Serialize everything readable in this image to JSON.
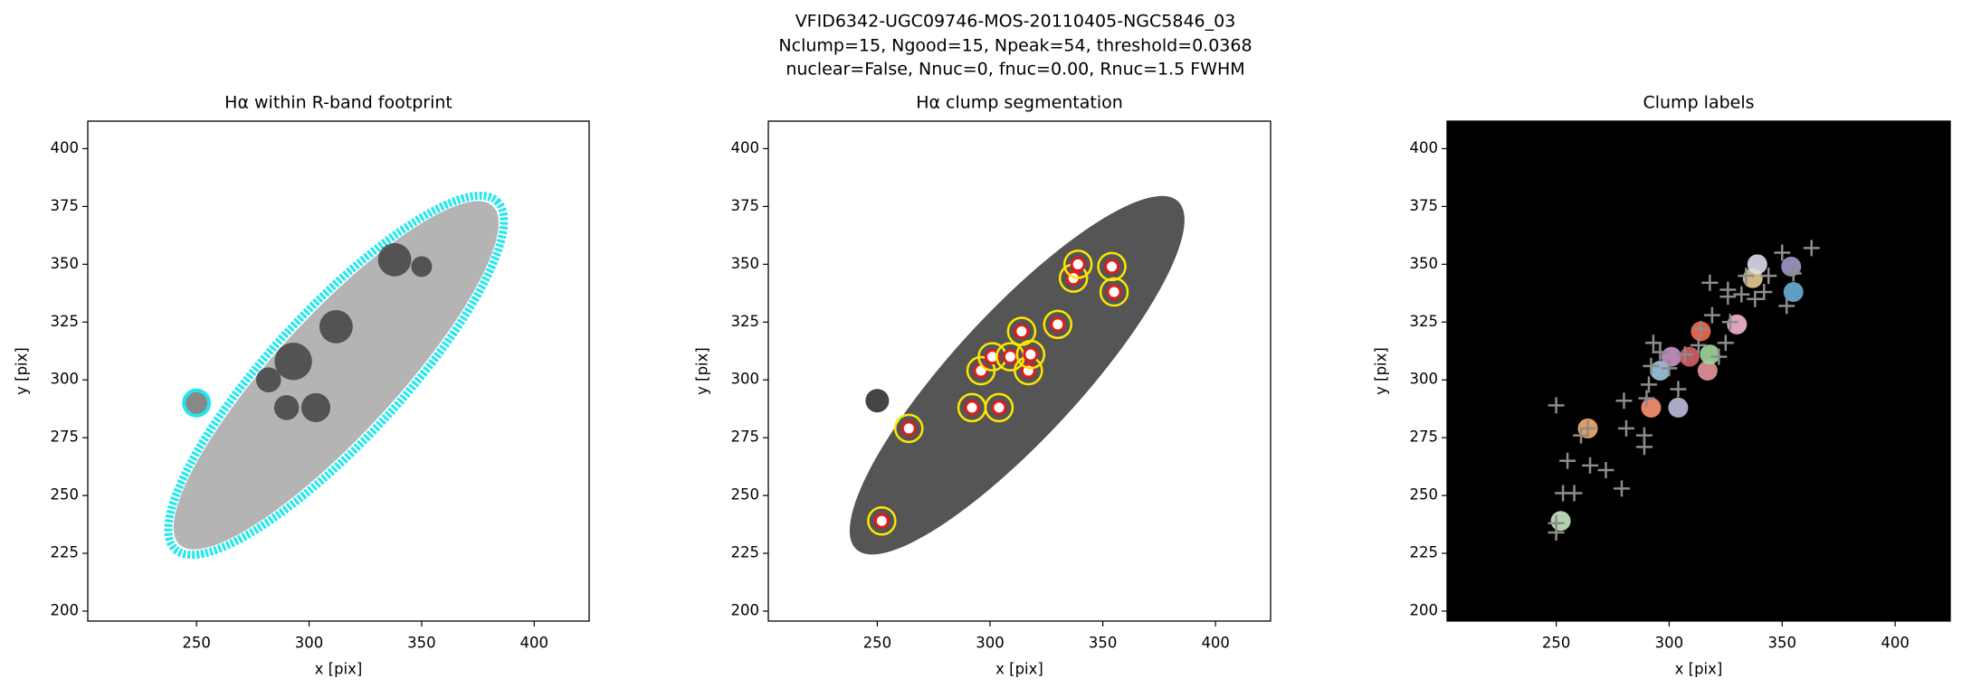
{
  "suptitle": [
    "VFID6342-UGC09746-MOS-20110405-NGC5846_03",
    "Nclump=15, Ngood=15, Npeak=54, threshold=0.0368",
    "nuclear=False, Nnuc=0, fnuc=0.00, Rnuc=1.5 FWHM"
  ],
  "chart_data": [
    {
      "type": "image",
      "title": "Hα within R-band footprint",
      "xlabel": "x [pix]",
      "ylabel": "y [pix]",
      "xlim": [
        201.7,
        424.4
      ],
      "ylim": [
        195.7,
        411.9
      ],
      "xticks": [
        250,
        300,
        350,
        400
      ],
      "yticks": [
        200,
        225,
        250,
        275,
        300,
        325,
        350,
        375,
        400
      ]
    },
    {
      "type": "scatter",
      "title": "Hα clump segmentation",
      "xlabel": "x [pix]",
      "ylabel": "y [pix]",
      "xlim": [
        201.7,
        424.4
      ],
      "ylim": [
        195.7,
        411.9
      ],
      "xticks": [
        250,
        300,
        350,
        400
      ],
      "yticks": [
        200,
        225,
        250,
        275,
        300,
        325,
        350,
        375,
        400
      ],
      "color": "#e31a1c",
      "x": [
        252,
        264,
        292,
        304,
        296,
        301,
        309,
        314,
        317,
        318,
        330,
        337,
        339,
        354,
        355
      ],
      "values": [
        239,
        279,
        288,
        288,
        304,
        310,
        310,
        321,
        304,
        311,
        324,
        344,
        350,
        349,
        338
      ]
    },
    {
      "type": "scatter",
      "title": "Clump labels",
      "xlabel": "x [pix]",
      "ylabel": "y [pix]",
      "xlim": [
        201.7,
        424.4
      ],
      "ylim": [
        195.7,
        411.9
      ],
      "xticks": [
        250,
        300,
        350,
        400
      ],
      "yticks": [
        200,
        225,
        250,
        275,
        300,
        325,
        350,
        375,
        400
      ],
      "color": "#8c8c8c",
      "x": [
        250,
        250,
        250,
        253,
        255,
        258,
        261,
        264,
        265,
        272,
        279,
        280,
        281,
        289,
        289,
        290,
        291,
        292,
        293,
        296,
        300,
        304,
        307,
        313,
        314,
        318,
        319,
        322,
        325,
        327,
        326,
        326,
        332,
        334,
        338,
        342,
        344,
        350,
        352,
        355,
        363
      ],
      "values": [
        289,
        238,
        234,
        251,
        265,
        251,
        276,
        279,
        263,
        261,
        253,
        291,
        279,
        271,
        276,
        292,
        298,
        306,
        316,
        312,
        305,
        296,
        311,
        315,
        322,
        342,
        328,
        310,
        316,
        325,
        336,
        339,
        337,
        345,
        335,
        338,
        345,
        355,
        332,
        346,
        357
      ]
    }
  ]
}
